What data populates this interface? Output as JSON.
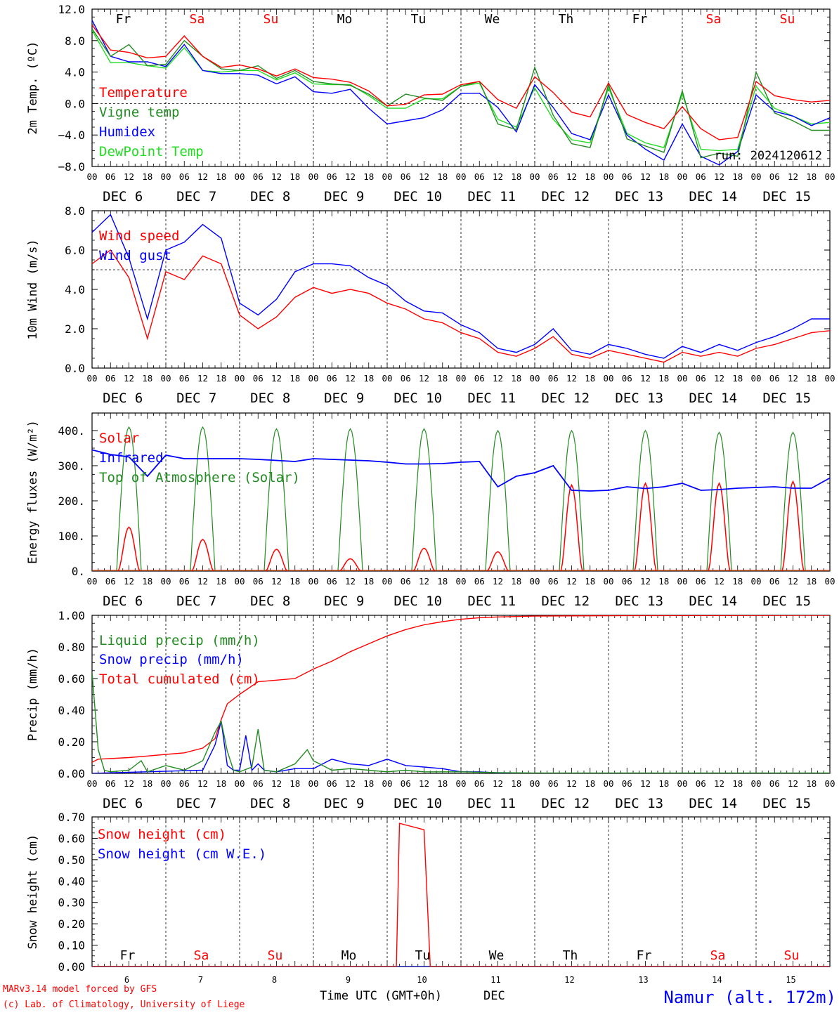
{
  "colors": {
    "red": "#ff0000",
    "green": "#228b22",
    "blue": "#0000ff",
    "lightgreen": "#22dd22",
    "black": "#000000"
  },
  "days": {
    "weekday": [
      "Fr",
      "Sa",
      "Su",
      "Mo",
      "Tu",
      "We",
      "Th",
      "Fr",
      "Sa",
      "Su"
    ],
    "weekend": [
      false,
      true,
      true,
      false,
      false,
      false,
      false,
      false,
      true,
      true
    ],
    "dates": [
      "DEC  6",
      "DEC  7",
      "DEC  8",
      "DEC  9",
      "DEC 10",
      "DEC 11",
      "DEC 12",
      "DEC 13",
      "DEC 14",
      "DEC 15"
    ],
    "numbers": [
      "6",
      "7",
      "8",
      "9",
      "10",
      "11",
      "12",
      "13",
      "14",
      "15"
    ],
    "hour_ticks": [
      "00",
      "06",
      "12",
      "18"
    ],
    "final_hour": "00"
  },
  "footer": {
    "model": "MARv3.14 model forced by GFS",
    "credit": "(c) Lab. of Climatology, University of Liege",
    "xlabel": "Time UTC (GMT+0h)",
    "month": "DEC",
    "station": "Namur (alt. 172m)"
  },
  "chart_data": [
    {
      "type": "line",
      "ylabel": "2m Temp. (ºC)",
      "ylim": [
        -8,
        12
      ],
      "yticks": [
        "12.0",
        "8.0",
        "4.0",
        "0.0",
        "−4.0",
        "−8.0"
      ],
      "ytick_values": [
        12,
        8,
        4,
        0,
        -4,
        -8
      ],
      "reference_line": 0,
      "annotation": "run: 2024120612",
      "x_unit": "hours since 2024-12-06 00 UTC",
      "series": [
        {
          "name": "Temperature",
          "color": "#ff0000",
          "x": [
            0,
            6,
            12,
            18,
            24,
            30,
            36,
            42,
            48,
            54,
            60,
            66,
            72,
            78,
            84,
            90,
            96,
            102,
            108,
            114,
            120,
            126,
            132,
            138,
            144,
            150,
            156,
            162,
            168,
            174,
            180,
            186,
            192,
            198,
            204,
            210,
            216,
            222,
            228,
            234,
            240
          ],
          "y": [
            10,
            6.8,
            6.5,
            5.8,
            6,
            8.6,
            6,
            4.6,
            4.9,
            4.4,
            3.5,
            4.4,
            3.3,
            3.1,
            2.7,
            1.6,
            -0.3,
            -0.1,
            1.1,
            1.2,
            2.4,
            2.8,
            0.5,
            -0.6,
            3.4,
            1.4,
            -1.1,
            -1.7,
            2.6,
            -1.4,
            -2.4,
            -3.2,
            -0.4,
            -3.2,
            -4.6,
            -4.3,
            2.8,
            1.0,
            0.5,
            0.2,
            0.4
          ]
        },
        {
          "name": "Vigne temp",
          "color": "#228b22",
          "x": [
            0,
            6,
            12,
            18,
            24,
            30,
            36,
            42,
            48,
            54,
            60,
            66,
            72,
            78,
            84,
            90,
            96,
            102,
            108,
            114,
            120,
            126,
            132,
            138,
            144,
            150,
            156,
            162,
            168,
            174,
            180,
            186,
            192,
            198,
            204,
            210,
            216,
            222,
            228,
            234,
            240
          ],
          "y": [
            9.5,
            6,
            7.5,
            4.8,
            5,
            8,
            6,
            4.4,
            4.2,
            4.8,
            3.2,
            4.2,
            2.8,
            2.5,
            2.3,
            1.2,
            -0.3,
            1.2,
            0.7,
            0.4,
            2.2,
            2.8,
            -2.6,
            -3.3,
            4.6,
            -1.5,
            -5.1,
            -5.6,
            2.4,
            -4.5,
            -5.4,
            -6.2,
            1.6,
            -6.9,
            -6.3,
            -6.7,
            4.0,
            -1.2,
            -2.2,
            -3.4,
            -3.4
          ]
        },
        {
          "name": "Humidex",
          "color": "#0000ff",
          "x": [
            0,
            6,
            12,
            18,
            24,
            30,
            36,
            42,
            48,
            54,
            60,
            66,
            72,
            78,
            84,
            90,
            96,
            102,
            108,
            114,
            120,
            126,
            132,
            138,
            144,
            150,
            156,
            162,
            168,
            174,
            180,
            186,
            192,
            198,
            204,
            210,
            216,
            222,
            228,
            234,
            240
          ],
          "y": [
            10.6,
            6,
            5.3,
            5.3,
            4.7,
            7.5,
            4.2,
            3.8,
            3.8,
            3.6,
            2.5,
            3.4,
            1.5,
            1.3,
            1.8,
            -0.6,
            -2.6,
            -2.2,
            -1.8,
            -0.8,
            1.3,
            1.3,
            -0.5,
            -3.6,
            2.4,
            -0.5,
            -3.8,
            -4.6,
            1.1,
            -4.0,
            -5.8,
            -7.2,
            -2.6,
            -6.7,
            -7.8,
            -6.1,
            1.1,
            -1.0,
            -1.6,
            -2.8,
            -1.8
          ]
        },
        {
          "name": "DewPoint Temp",
          "color": "#22dd22",
          "x": [
            0,
            6,
            12,
            18,
            24,
            30,
            36,
            42,
            48,
            54,
            60,
            66,
            72,
            78,
            84,
            90,
            96,
            102,
            108,
            114,
            120,
            126,
            132,
            138,
            144,
            150,
            156,
            162,
            168,
            174,
            180,
            186,
            192,
            198,
            204,
            210,
            216,
            222,
            228,
            234,
            240
          ],
          "y": [
            9.3,
            5.2,
            5.2,
            4.8,
            4.5,
            7.1,
            4.2,
            4.0,
            4.2,
            4.2,
            3.0,
            3.9,
            2.5,
            2.4,
            2.4,
            1.0,
            -0.6,
            -0.6,
            0.6,
            0.6,
            2.2,
            2.6,
            -2.0,
            -3.0,
            2.0,
            -2.0,
            -4.6,
            -5.0,
            2.0,
            -3.8,
            -5.0,
            -5.6,
            1.2,
            -5.8,
            -6.0,
            -5.8,
            2.2,
            -0.6,
            -1.6,
            -2.6,
            -2.4
          ]
        }
      ]
    },
    {
      "type": "line",
      "ylabel": "10m Wind (m/s)",
      "ylim": [
        0,
        8
      ],
      "yticks": [
        "8.0",
        "6.0",
        "4.0",
        "2.0",
        "0.0"
      ],
      "ytick_values": [
        8,
        6,
        4,
        2,
        0
      ],
      "reference_line": 5,
      "x_unit": "hours since 2024-12-06 00 UTC",
      "series": [
        {
          "name": "Wind speed",
          "color": "#ff0000",
          "x": [
            0,
            6,
            12,
            18,
            24,
            30,
            36,
            42,
            48,
            54,
            60,
            66,
            72,
            78,
            84,
            90,
            96,
            102,
            108,
            114,
            120,
            126,
            132,
            138,
            144,
            150,
            156,
            162,
            168,
            174,
            180,
            186,
            192,
            198,
            204,
            210,
            216,
            222,
            228,
            234,
            240
          ],
          "y": [
            5.3,
            6.0,
            4.6,
            1.5,
            4.9,
            4.5,
            5.7,
            5.3,
            2.7,
            2.0,
            2.6,
            3.6,
            4.1,
            3.8,
            4.0,
            3.8,
            3.3,
            3.0,
            2.5,
            2.3,
            1.8,
            1.5,
            0.8,
            0.6,
            1.0,
            1.6,
            0.7,
            0.5,
            0.9,
            0.7,
            0.5,
            0.3,
            0.8,
            0.6,
            0.8,
            0.6,
            1.0,
            1.2,
            1.5,
            1.8,
            1.9
          ]
        },
        {
          "name": "Wind gust",
          "color": "#0000ff",
          "x": [
            0,
            6,
            12,
            18,
            24,
            30,
            36,
            42,
            48,
            54,
            60,
            66,
            72,
            78,
            84,
            90,
            96,
            102,
            108,
            114,
            120,
            126,
            132,
            138,
            144,
            150,
            156,
            162,
            168,
            174,
            180,
            186,
            192,
            198,
            204,
            210,
            216,
            222,
            228,
            234,
            240
          ],
          "y": [
            6.9,
            7.8,
            5.6,
            2.5,
            6.0,
            6.4,
            7.3,
            6.6,
            3.3,
            2.7,
            3.5,
            4.9,
            5.3,
            5.3,
            5.2,
            4.6,
            4.2,
            3.4,
            2.9,
            2.8,
            2.2,
            1.8,
            1.0,
            0.8,
            1.2,
            2.0,
            0.9,
            0.7,
            1.2,
            1.0,
            0.7,
            0.5,
            1.1,
            0.8,
            1.2,
            0.9,
            1.3,
            1.6,
            2.0,
            2.5,
            2.5
          ]
        }
      ]
    },
    {
      "type": "line",
      "ylabel": "Energy fluxes (W/m²)",
      "ylim": [
        0,
        450
      ],
      "yticks": [
        "400.",
        "300.",
        "200.",
        "100.",
        "0."
      ],
      "ytick_values": [
        400,
        300,
        200,
        100,
        0
      ],
      "x_unit": "hours since 2024-12-06 00 UTC",
      "daily_peaks": {
        "top_of_atmosphere": [
          410,
          410,
          405,
          405,
          405,
          400,
          400,
          400,
          395,
          395
        ],
        "solar": [
          125,
          90,
          62,
          35,
          65,
          55,
          245,
          250,
          250,
          255
        ]
      },
      "series": [
        {
          "name": "Solar",
          "color": "#ff0000"
        },
        {
          "name": "Infrared",
          "color": "#0000ff",
          "x": [
            0,
            6,
            12,
            18,
            24,
            30,
            36,
            42,
            48,
            54,
            60,
            66,
            72,
            78,
            84,
            90,
            96,
            102,
            108,
            114,
            120,
            126,
            132,
            138,
            144,
            150,
            156,
            162,
            168,
            174,
            180,
            186,
            192,
            198,
            204,
            210,
            216,
            222,
            228,
            234,
            240
          ],
          "y": [
            345,
            332,
            325,
            270,
            330,
            320,
            320,
            320,
            320,
            318,
            315,
            312,
            320,
            318,
            316,
            314,
            310,
            305,
            305,
            306,
            310,
            312,
            240,
            270,
            280,
            300,
            230,
            228,
            230,
            240,
            235,
            240,
            250,
            230,
            232,
            236,
            238,
            240,
            236,
            236,
            265
          ]
        },
        {
          "name": "Top of Atmosphere (Solar)",
          "color": "#228b22"
        }
      ]
    },
    {
      "type": "line",
      "ylabel": "Precip (mm/h)",
      "ylim": [
        0,
        1
      ],
      "yticks": [
        "1.00",
        "0.80",
        "0.60",
        "0.40",
        "0.20",
        "0.00"
      ],
      "ytick_values": [
        1,
        0.8,
        0.6,
        0.4,
        0.2,
        0
      ],
      "x_unit": "hours since 2024-12-06 00 UTC",
      "series": [
        {
          "name": "Liquid precip (mm/h)",
          "color": "#228b22",
          "x": [
            0,
            2,
            4,
            6,
            12,
            16,
            18,
            24,
            30,
            36,
            40,
            42,
            44,
            46,
            48,
            52,
            54,
            56,
            60,
            66,
            70,
            72,
            78,
            84,
            90,
            96,
            102,
            108,
            120,
            132,
            144,
            240
          ],
          "y": [
            0.64,
            0.15,
            0.02,
            0.01,
            0.02,
            0.08,
            0.01,
            0.05,
            0.02,
            0.08,
            0.26,
            0.33,
            0.14,
            0.02,
            0.01,
            0.04,
            0.28,
            0.02,
            0.01,
            0.06,
            0.15,
            0.08,
            0.02,
            0.03,
            0.02,
            0.01,
            0.02,
            0.01,
            0.01,
            0.005,
            0.002,
            0.002
          ]
        },
        {
          "name": "Snow precip (mm/h)",
          "color": "#0000ff",
          "x": [
            0,
            36,
            40,
            42,
            44,
            46,
            48,
            50,
            52,
            54,
            56,
            60,
            66,
            72,
            78,
            84,
            90,
            96,
            102,
            108,
            114,
            120,
            126,
            132,
            144,
            240
          ],
          "y": [
            0,
            0.02,
            0.18,
            0.33,
            0.05,
            0.02,
            0.02,
            0.24,
            0.02,
            0.06,
            0.02,
            0.01,
            0.03,
            0.03,
            0.09,
            0.06,
            0.05,
            0.09,
            0.05,
            0.04,
            0.03,
            0.01,
            0.01,
            0.003,
            0.001,
            0.001
          ]
        },
        {
          "name": "Total cumulated (cm)",
          "color": "#ff0000",
          "x": [
            0,
            2,
            12,
            18,
            24,
            30,
            36,
            40,
            42,
            44,
            48,
            54,
            60,
            66,
            72,
            78,
            84,
            90,
            96,
            102,
            108,
            114,
            120,
            126,
            132,
            144,
            168,
            240
          ],
          "y": [
            0.07,
            0.09,
            0.1,
            0.11,
            0.12,
            0.13,
            0.16,
            0.22,
            0.34,
            0.44,
            0.5,
            0.58,
            0.59,
            0.6,
            0.66,
            0.71,
            0.77,
            0.82,
            0.87,
            0.91,
            0.94,
            0.96,
            0.975,
            0.985,
            0.99,
            0.995,
            0.998,
            1.0
          ]
        }
      ]
    },
    {
      "type": "line",
      "ylabel": "Snow height (cm)",
      "ylim": [
        0,
        0.7
      ],
      "yticks": [
        "0.70",
        "0.60",
        "0.50",
        "0.40",
        "0.30",
        "0.20",
        "0.10",
        "0.00"
      ],
      "ytick_values": [
        0.7,
        0.6,
        0.5,
        0.4,
        0.3,
        0.2,
        0.1,
        0
      ],
      "x_unit": "hours since 2024-12-06 00 UTC",
      "series": [
        {
          "name": "Snow height (cm)",
          "color": "#ff0000",
          "x": [
            0,
            99,
            100,
            108,
            110,
            240
          ],
          "y": [
            0,
            0,
            0.67,
            0.64,
            0,
            0
          ]
        },
        {
          "name": "Snow height (cm W.E.)",
          "color": "#0000ff",
          "x": [
            0,
            240
          ],
          "y": [
            0,
            0
          ]
        }
      ]
    }
  ]
}
